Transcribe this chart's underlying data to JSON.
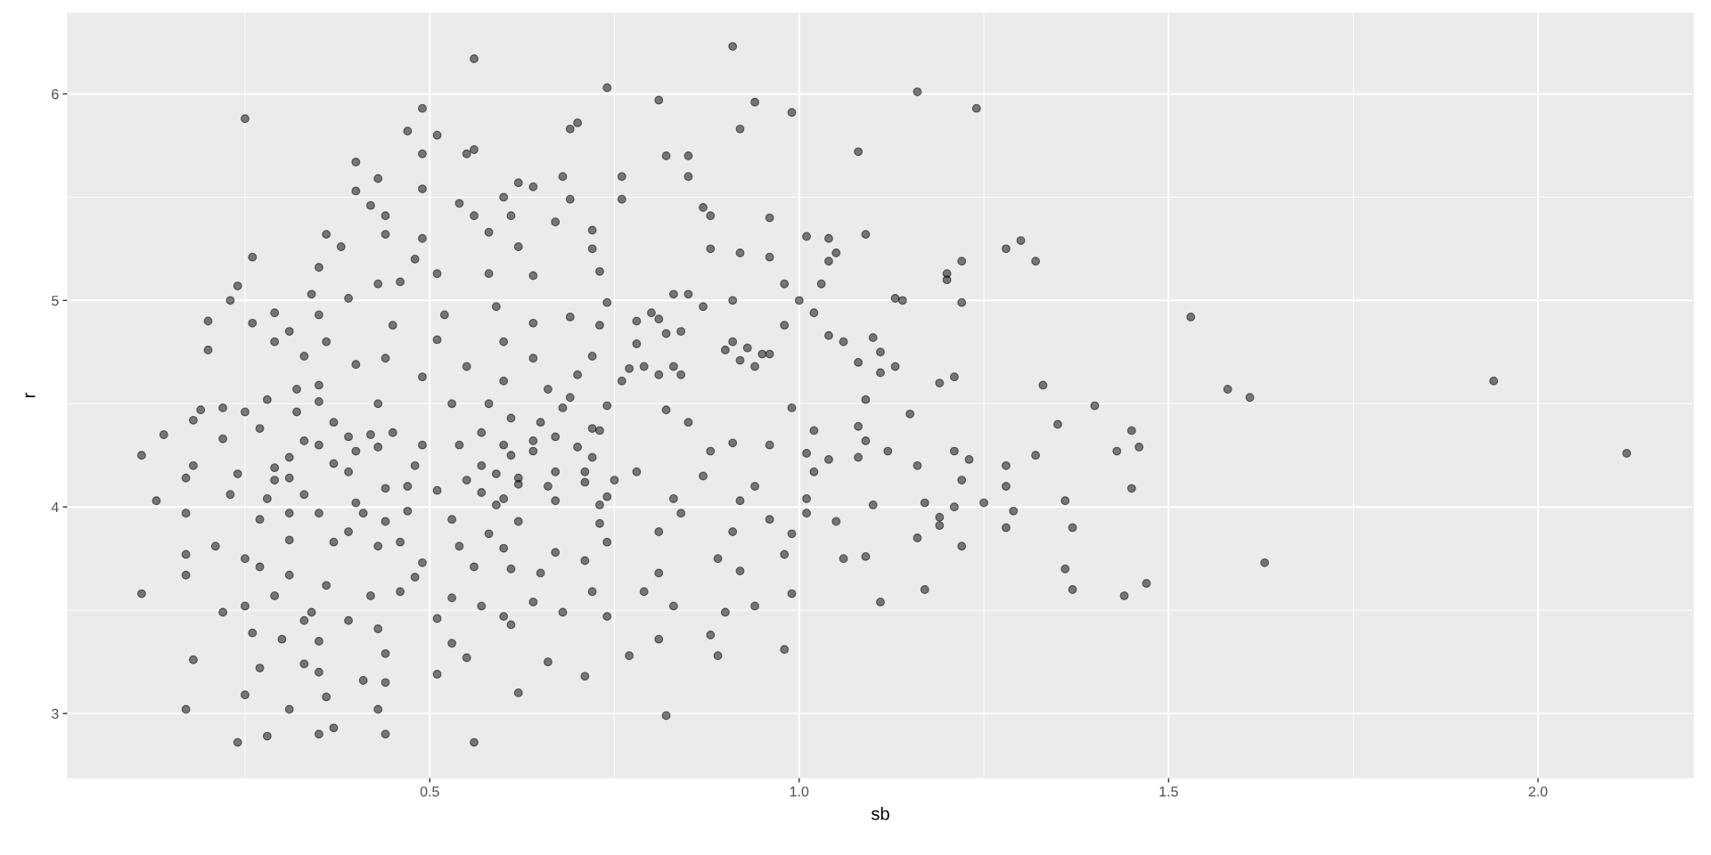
{
  "chart_data": {
    "type": "scatter",
    "xlabel": "sb",
    "ylabel": "r",
    "color": "#000000",
    "marker": "circle",
    "grid": true,
    "xlim": [
      0.01,
      2.21
    ],
    "ylim": [
      2.69,
      6.39
    ],
    "xticks": [
      0.5,
      {
        "value": 1,
        "label": "1.0"
      },
      1.5,
      {
        "value": 2,
        "label": "2.0"
      }
    ],
    "yticks": [
      3,
      4,
      5,
      6
    ],
    "x": [
      1.53,
      1.58,
      1.61,
      1.63,
      1.94,
      2.12,
      0.91,
      0.81,
      0.94,
      0.99,
      0.92,
      1.16,
      1.24,
      1.08,
      0.82,
      0.85,
      0.85,
      0.76,
      0.87,
      0.88,
      0.96,
      1.01,
      1.04,
      1.09,
      1.28,
      1.3,
      1.32,
      1.22,
      1.2,
      1.2,
      1.05,
      1.04,
      0.88,
      0.92,
      0.96,
      1.13,
      1.14,
      1.22,
      1.0,
      0.98,
      1.03,
      0.91,
      1.1,
      1.11,
      1.06,
      1.08,
      1.13,
      1.11,
      1.19,
      1.21,
      1.33,
      1.02,
      1.04,
      0.98,
      1.4,
      1.15,
      1.35,
      1.45,
      1.46,
      1.43,
      1.45,
      1.32,
      1.28,
      1.28,
      1.29,
      1.28,
      1.36,
      1.37,
      1.36,
      1.37,
      1.47,
      1.44,
      1.25,
      1.21,
      1.23,
      1.22,
      1.21,
      1.22,
      1.17,
      1.19,
      1.19,
      1.16,
      1.17,
      1.16,
      1.12,
      1.08,
      1.08,
      1.09,
      1.09,
      1.04,
      1.01,
      1.02,
      1.02,
      1.01,
      1.01,
      1.05,
      1.1,
      1.06,
      1.09,
      1.11,
      0.82,
      0.98,
      0.89,
      0.77,
      0.81,
      0.88,
      0.9,
      0.99,
      0.94,
      0.83,
      0.92,
      0.98,
      0.79,
      0.89,
      0.81,
      0.99,
      0.91,
      0.81,
      0.92,
      0.84,
      0.96,
      0.94,
      0.83,
      0.99,
      0.96,
      0.91,
      0.88,
      0.82,
      0.85,
      0.78,
      0.87,
      0.56,
      0.25,
      0.74,
      0.49,
      0.47,
      0.51,
      0.49,
      0.55,
      0.56,
      0.69,
      0.7,
      0.4,
      0.43,
      0.4,
      0.49,
      0.42,
      0.44,
      0.54,
      0.56,
      0.6,
      0.62,
      0.64,
      0.68,
      0.69,
      0.76,
      0.36,
      0.38,
      0.44,
      0.49,
      0.58,
      0.61,
      0.67,
      0.72,
      0.72,
      0.62,
      0.48,
      0.35,
      0.26,
      0.24,
      0.23,
      0.2,
      0.2,
      0.26,
      0.29,
      0.31,
      0.29,
      0.34,
      0.39,
      0.43,
      0.46,
      0.51,
      0.58,
      0.64,
      0.73,
      0.74,
      0.59,
      0.52,
      0.45,
      0.35,
      0.36,
      0.33,
      0.35,
      0.4,
      0.44,
      0.51,
      0.55,
      0.6,
      0.64,
      0.69,
      0.73,
      0.72,
      0.7,
      0.64,
      0.49,
      0.6,
      0.66,
      0.32,
      0.78,
      0.8,
      0.81,
      0.83,
      0.85,
      0.87,
      0.82,
      0.84,
      0.78,
      0.77,
      0.79,
      0.83,
      0.84,
      0.81,
      0.91,
      0.9,
      0.93,
      0.95,
      0.96,
      0.92,
      0.94,
      0.76,
      0.11,
      0.11,
      0.14,
      0.13,
      0.17,
      0.18,
      0.18,
      0.19,
      0.17,
      0.17,
      0.17,
      0.18,
      0.17,
      0.22,
      0.22,
      0.24,
      0.23,
      0.21,
      0.22,
      0.25,
      0.27,
      0.25,
      0.26,
      0.27,
      0.25,
      0.24,
      0.28,
      0.31,
      0.35,
      0.37,
      0.44,
      0.56,
      0.43,
      0.36,
      0.41,
      0.44,
      0.35,
      0.33,
      0.44,
      0.51,
      0.62,
      0.66,
      0.71,
      0.51,
      0.53,
      0.55,
      0.43,
      0.35,
      0.3,
      0.33,
      0.39,
      0.6,
      0.61,
      0.68,
      0.74,
      0.57,
      0.53,
      0.42,
      0.29,
      0.34,
      0.31,
      0.36,
      0.46,
      0.48,
      0.56,
      0.64,
      0.72,
      0.65,
      0.61,
      0.71,
      0.74,
      0.67,
      0.6,
      0.54,
      0.49,
      0.46,
      0.43,
      0.37,
      0.31,
      0.27,
      0.28,
      0.31,
      0.35,
      0.39,
      0.41,
      0.44,
      0.47,
      0.53,
      0.58,
      0.62,
      0.73,
      0.73,
      0.67,
      0.59,
      0.57,
      0.55,
      0.57,
      0.51,
      0.47,
      0.48,
      0.49,
      0.54,
      0.57,
      0.58,
      0.53,
      0.45,
      0.43,
      0.42,
      0.43,
      0.44,
      0.4,
      0.39,
      0.4,
      0.37,
      0.35,
      0.39,
      0.37,
      0.35,
      0.32,
      0.28,
      0.27,
      0.25,
      0.33,
      0.31,
      0.31,
      0.33,
      0.29,
      0.29,
      0.61,
      0.64,
      0.65,
      0.67,
      0.68,
      0.7,
      0.72,
      0.73,
      0.72,
      0.74,
      0.67,
      0.71,
      0.71,
      0.66,
      0.62,
      0.61,
      0.64,
      0.6,
      0.59,
      0.6,
      0.62,
      0.75,
      0.74,
      0.69
    ],
    "values": [
      4.92,
      4.57,
      4.53,
      3.73,
      4.61,
      4.26,
      6.23,
      5.97,
      5.96,
      5.91,
      5.83,
      6.01,
      5.93,
      5.72,
      5.7,
      5.7,
      5.6,
      5.49,
      5.45,
      5.41,
      5.4,
      5.31,
      5.3,
      5.32,
      5.25,
      5.29,
      5.19,
      5.19,
      5.13,
      5.1,
      5.23,
      5.19,
      5.25,
      5.23,
      5.21,
      5.01,
      5.0,
      4.99,
      5.0,
      5.08,
      5.08,
      5.0,
      4.82,
      4.75,
      4.8,
      4.7,
      4.68,
      4.65,
      4.6,
      4.63,
      4.59,
      4.94,
      4.83,
      4.88,
      4.49,
      4.45,
      4.4,
      4.37,
      4.29,
      4.27,
      4.09,
      4.25,
      4.2,
      4.1,
      3.98,
      3.9,
      4.03,
      3.9,
      3.7,
      3.6,
      3.63,
      3.57,
      4.02,
      4.27,
      4.23,
      4.13,
      4.0,
      3.81,
      4.02,
      3.95,
      3.91,
      3.85,
      3.6,
      4.2,
      4.27,
      4.24,
      4.39,
      4.32,
      4.52,
      4.23,
      4.26,
      4.37,
      4.17,
      4.04,
      3.97,
      3.93,
      4.01,
      3.75,
      3.76,
      3.54,
      2.99,
      3.31,
      3.28,
      3.28,
      3.36,
      3.38,
      3.49,
      3.58,
      3.52,
      3.52,
      3.69,
      3.77,
      3.59,
      3.75,
      3.68,
      3.87,
      3.88,
      3.88,
      4.03,
      3.97,
      3.94,
      4.1,
      4.04,
      4.48,
      4.3,
      4.31,
      4.27,
      4.47,
      4.41,
      4.17,
      4.15,
      6.17,
      5.88,
      6.03,
      5.93,
      5.82,
      5.8,
      5.71,
      5.71,
      5.73,
      5.83,
      5.86,
      5.67,
      5.59,
      5.53,
      5.54,
      5.46,
      5.41,
      5.47,
      5.41,
      5.5,
      5.57,
      5.55,
      5.6,
      5.49,
      5.6,
      5.32,
      5.26,
      5.32,
      5.3,
      5.33,
      5.41,
      5.38,
      5.34,
      5.25,
      5.26,
      5.2,
      5.16,
      5.21,
      5.07,
      5.0,
      4.9,
      4.76,
      4.89,
      4.94,
      4.85,
      4.8,
      5.03,
      5.01,
      5.08,
      5.09,
      5.13,
      5.13,
      5.12,
      5.14,
      4.99,
      4.97,
      4.93,
      4.88,
      4.93,
      4.8,
      4.73,
      4.59,
      4.69,
      4.72,
      4.81,
      4.68,
      4.8,
      4.89,
      4.92,
      4.88,
      4.73,
      4.64,
      4.72,
      4.63,
      4.61,
      4.57,
      4.57,
      4.9,
      4.94,
      4.91,
      5.03,
      5.03,
      4.97,
      4.84,
      4.85,
      4.79,
      4.67,
      4.68,
      4.68,
      4.64,
      4.64,
      4.8,
      4.76,
      4.77,
      4.74,
      4.74,
      4.71,
      4.68,
      4.61,
      4.25,
      3.58,
      4.35,
      4.03,
      4.14,
      4.2,
      4.42,
      4.47,
      3.97,
      3.77,
      3.67,
      3.26,
      3.02,
      4.33,
      4.48,
      4.16,
      4.06,
      3.81,
      3.49,
      3.75,
      3.71,
      3.52,
      3.39,
      3.22,
      3.09,
      2.86,
      2.89,
      3.02,
      2.9,
      2.93,
      2.9,
      2.86,
      3.02,
      3.08,
      3.16,
      3.15,
      3.2,
      3.24,
      3.29,
      3.19,
      3.1,
      3.25,
      3.18,
      3.46,
      3.34,
      3.27,
      3.41,
      3.35,
      3.36,
      3.45,
      3.45,
      3.47,
      3.43,
      3.49,
      3.47,
      3.52,
      3.56,
      3.57,
      3.57,
      3.49,
      3.67,
      3.62,
      3.59,
      3.66,
      3.71,
      3.54,
      3.59,
      3.68,
      3.7,
      3.74,
      3.83,
      3.78,
      3.8,
      3.81,
      3.73,
      3.83,
      3.81,
      3.83,
      3.84,
      3.94,
      4.04,
      3.97,
      3.97,
      3.88,
      3.97,
      3.93,
      3.98,
      3.94,
      3.87,
      3.93,
      3.92,
      4.01,
      4.03,
      4.01,
      4.07,
      4.13,
      4.2,
      4.08,
      4.1,
      4.2,
      4.3,
      4.3,
      4.36,
      4.5,
      4.5,
      4.36,
      4.5,
      4.35,
      4.29,
      4.09,
      4.27,
      4.17,
      4.02,
      4.21,
      4.3,
      4.34,
      4.41,
      4.51,
      4.46,
      4.52,
      4.38,
      4.46,
      4.32,
      4.24,
      4.14,
      4.06,
      4.19,
      4.13,
      4.43,
      4.32,
      4.41,
      4.34,
      4.48,
      4.29,
      4.38,
      4.37,
      4.24,
      4.49,
      4.17,
      4.17,
      4.12,
      4.1,
      4.14,
      4.25,
      4.27,
      4.3,
      4.16,
      4.04,
      4.11,
      4.13,
      4.05,
      4.53
    ]
  }
}
